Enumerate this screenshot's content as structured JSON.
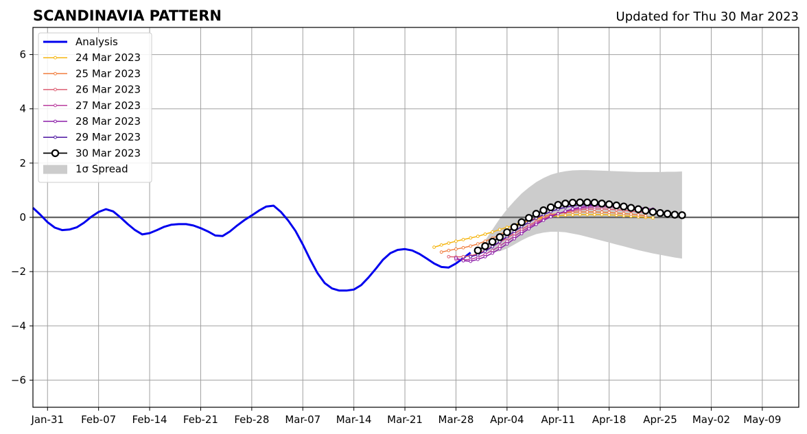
{
  "chart_data": {
    "type": "line",
    "title": "SCANDINAVIA PATTERN",
    "subtitle": "Updated for Thu 30 Mar 2023",
    "ylim": [
      -7,
      7
    ],
    "yticks": [
      -6,
      -4,
      -2,
      0,
      2,
      4,
      6
    ],
    "ytick_labels": [
      "−6",
      "−4",
      "−2",
      "0",
      "2",
      "4",
      "6"
    ],
    "xlim": [
      "2023-01-29",
      "2023-05-14"
    ],
    "xticks": [
      "2023-01-31",
      "2023-02-07",
      "2023-02-14",
      "2023-02-21",
      "2023-02-28",
      "2023-03-07",
      "2023-03-14",
      "2023-03-21",
      "2023-03-28",
      "2023-04-04",
      "2023-04-11",
      "2023-04-18",
      "2023-04-25",
      "2023-05-02",
      "2023-05-09"
    ],
    "xtick_labels": [
      "Jan-31",
      "Feb-07",
      "Feb-14",
      "Feb-21",
      "Feb-28",
      "Mar-07",
      "Mar-14",
      "Mar-21",
      "Mar-28",
      "Apr-04",
      "Apr-11",
      "Apr-18",
      "Apr-25",
      "May-02",
      "May-09"
    ],
    "grid": true,
    "zero_line": true,
    "legend_position": "upper-left",
    "series": [
      {
        "name": "Analysis",
        "color": "#0000ee",
        "style": "line",
        "start": "2023-01-29",
        "values": [
          0.35,
          0.1,
          -0.18,
          -0.38,
          -0.47,
          -0.45,
          -0.37,
          -0.2,
          0.02,
          0.2,
          0.3,
          0.22,
          0.0,
          -0.25,
          -0.47,
          -0.63,
          -0.58,
          -0.47,
          -0.35,
          -0.27,
          -0.25,
          -0.25,
          -0.3,
          -0.4,
          -0.52,
          -0.67,
          -0.69,
          -0.52,
          -0.3,
          -0.1,
          0.07,
          0.25,
          0.4,
          0.43,
          0.2,
          -0.12,
          -0.5,
          -1.0,
          -1.55,
          -2.05,
          -2.42,
          -2.62,
          -2.7,
          -2.7,
          -2.66,
          -2.5,
          -2.22,
          -1.9,
          -1.56,
          -1.32,
          -1.2,
          -1.17,
          -1.22,
          -1.35,
          -1.52,
          -1.7,
          -1.83,
          -1.85,
          -1.7,
          -1.5,
          -1.3
        ]
      },
      {
        "name": "24 Mar 2023",
        "color": "#f5b50f",
        "style": "small-markers",
        "start": "2023-03-25",
        "values": [
          -1.1,
          -1.02,
          -0.95,
          -0.88,
          -0.82,
          -0.76,
          -0.7,
          -0.62,
          -0.54,
          -0.45,
          -0.37,
          -0.28,
          -0.19,
          -0.12,
          -0.06,
          -0.01,
          0.03,
          0.06,
          0.08,
          0.09,
          0.1,
          0.1,
          0.1,
          0.1,
          0.09,
          0.08,
          0.06,
          0.04,
          0.02,
          0.0,
          -0.02
        ]
      },
      {
        "name": "25 Mar 2023",
        "color": "#f07c3c",
        "style": "small-markers",
        "start": "2023-03-26",
        "values": [
          -1.28,
          -1.22,
          -1.17,
          -1.12,
          -1.06,
          -0.98,
          -0.88,
          -0.77,
          -0.64,
          -0.5,
          -0.36,
          -0.23,
          -0.12,
          -0.03,
          0.04,
          0.1,
          0.14,
          0.17,
          0.19,
          0.2,
          0.2,
          0.2,
          0.19,
          0.18,
          0.16,
          0.14,
          0.12,
          0.09,
          0.06
        ]
      },
      {
        "name": "26 Mar 2023",
        "color": "#dc5a70",
        "style": "small-markers",
        "start": "2023-03-27",
        "values": [
          -1.45,
          -1.46,
          -1.45,
          -1.42,
          -1.34,
          -1.22,
          -1.08,
          -0.92,
          -0.76,
          -0.6,
          -0.44,
          -0.29,
          -0.16,
          -0.04,
          0.06,
          0.14,
          0.2,
          0.25,
          0.28,
          0.3,
          0.31,
          0.31,
          0.3,
          0.28,
          0.26,
          0.23,
          0.2,
          0.17
        ]
      },
      {
        "name": "27 Mar 2023",
        "color": "#b93c9e",
        "style": "small-markers",
        "start": "2023-03-28",
        "values": [
          -1.55,
          -1.57,
          -1.55,
          -1.47,
          -1.36,
          -1.22,
          -1.06,
          -0.88,
          -0.7,
          -0.52,
          -0.36,
          -0.21,
          -0.08,
          0.04,
          0.14,
          0.22,
          0.28,
          0.33,
          0.36,
          0.38,
          0.39,
          0.38,
          0.37,
          0.35,
          0.33,
          0.3,
          0.27
        ]
      },
      {
        "name": "28 Mar 2023",
        "color": "#8c1ca8",
        "style": "small-markers",
        "start": "2023-03-28",
        "values": [
          -1.5,
          -1.6,
          -1.62,
          -1.55,
          -1.45,
          -1.32,
          -1.16,
          -0.98,
          -0.79,
          -0.6,
          -0.42,
          -0.26,
          -0.11,
          0.02,
          0.13,
          0.23,
          0.31,
          0.37,
          0.41,
          0.44,
          0.45,
          0.45,
          0.44,
          0.42,
          0.39,
          0.36,
          0.33,
          0.3
        ]
      },
      {
        "name": "29 Mar 2023",
        "color": "#4b12a0",
        "style": "small-markers",
        "start": "2023-03-30",
        "values": [
          -1.45,
          -1.38,
          -1.25,
          -1.08,
          -0.9,
          -0.71,
          -0.52,
          -0.34,
          -0.18,
          -0.03,
          0.1,
          0.21,
          0.3,
          0.37,
          0.42,
          0.45,
          0.46,
          0.46,
          0.45,
          0.43,
          0.41,
          0.38,
          0.35,
          0.31,
          0.27,
          0.23
        ]
      },
      {
        "name": "30 Mar 2023",
        "color": "#000000",
        "style": "large-markers",
        "start": "2023-03-31",
        "values": [
          -1.22,
          -1.06,
          -0.9,
          -0.73,
          -0.55,
          -0.36,
          -0.18,
          -0.02,
          0.13,
          0.26,
          0.37,
          0.46,
          0.51,
          0.54,
          0.55,
          0.55,
          0.54,
          0.51,
          0.48,
          0.44,
          0.4,
          0.35,
          0.3,
          0.25,
          0.2,
          0.16,
          0.13,
          0.1,
          0.08
        ]
      }
    ],
    "spread": {
      "name": "1σ Spread",
      "color": "#cccccc",
      "start": "2023-03-31",
      "end": "2023-04-28",
      "upper": [
        -1.22,
        -0.85,
        -0.45,
        -0.05,
        0.3,
        0.6,
        0.88,
        1.1,
        1.3,
        1.45,
        1.57,
        1.65,
        1.7,
        1.73,
        1.74,
        1.74,
        1.73,
        1.72,
        1.71,
        1.7,
        1.69,
        1.68,
        1.67,
        1.67,
        1.67,
        1.67,
        1.68,
        1.68,
        1.69
      ],
      "lower": [
        -1.22,
        -1.25,
        -1.28,
        -1.25,
        -1.15,
        -1.0,
        -0.85,
        -0.72,
        -0.62,
        -0.56,
        -0.53,
        -0.53,
        -0.55,
        -0.6,
        -0.65,
        -0.72,
        -0.79,
        -0.86,
        -0.93,
        -1.0,
        -1.07,
        -1.14,
        -1.21,
        -1.27,
        -1.33,
        -1.38,
        -1.43,
        -1.48,
        -1.52
      ]
    }
  }
}
